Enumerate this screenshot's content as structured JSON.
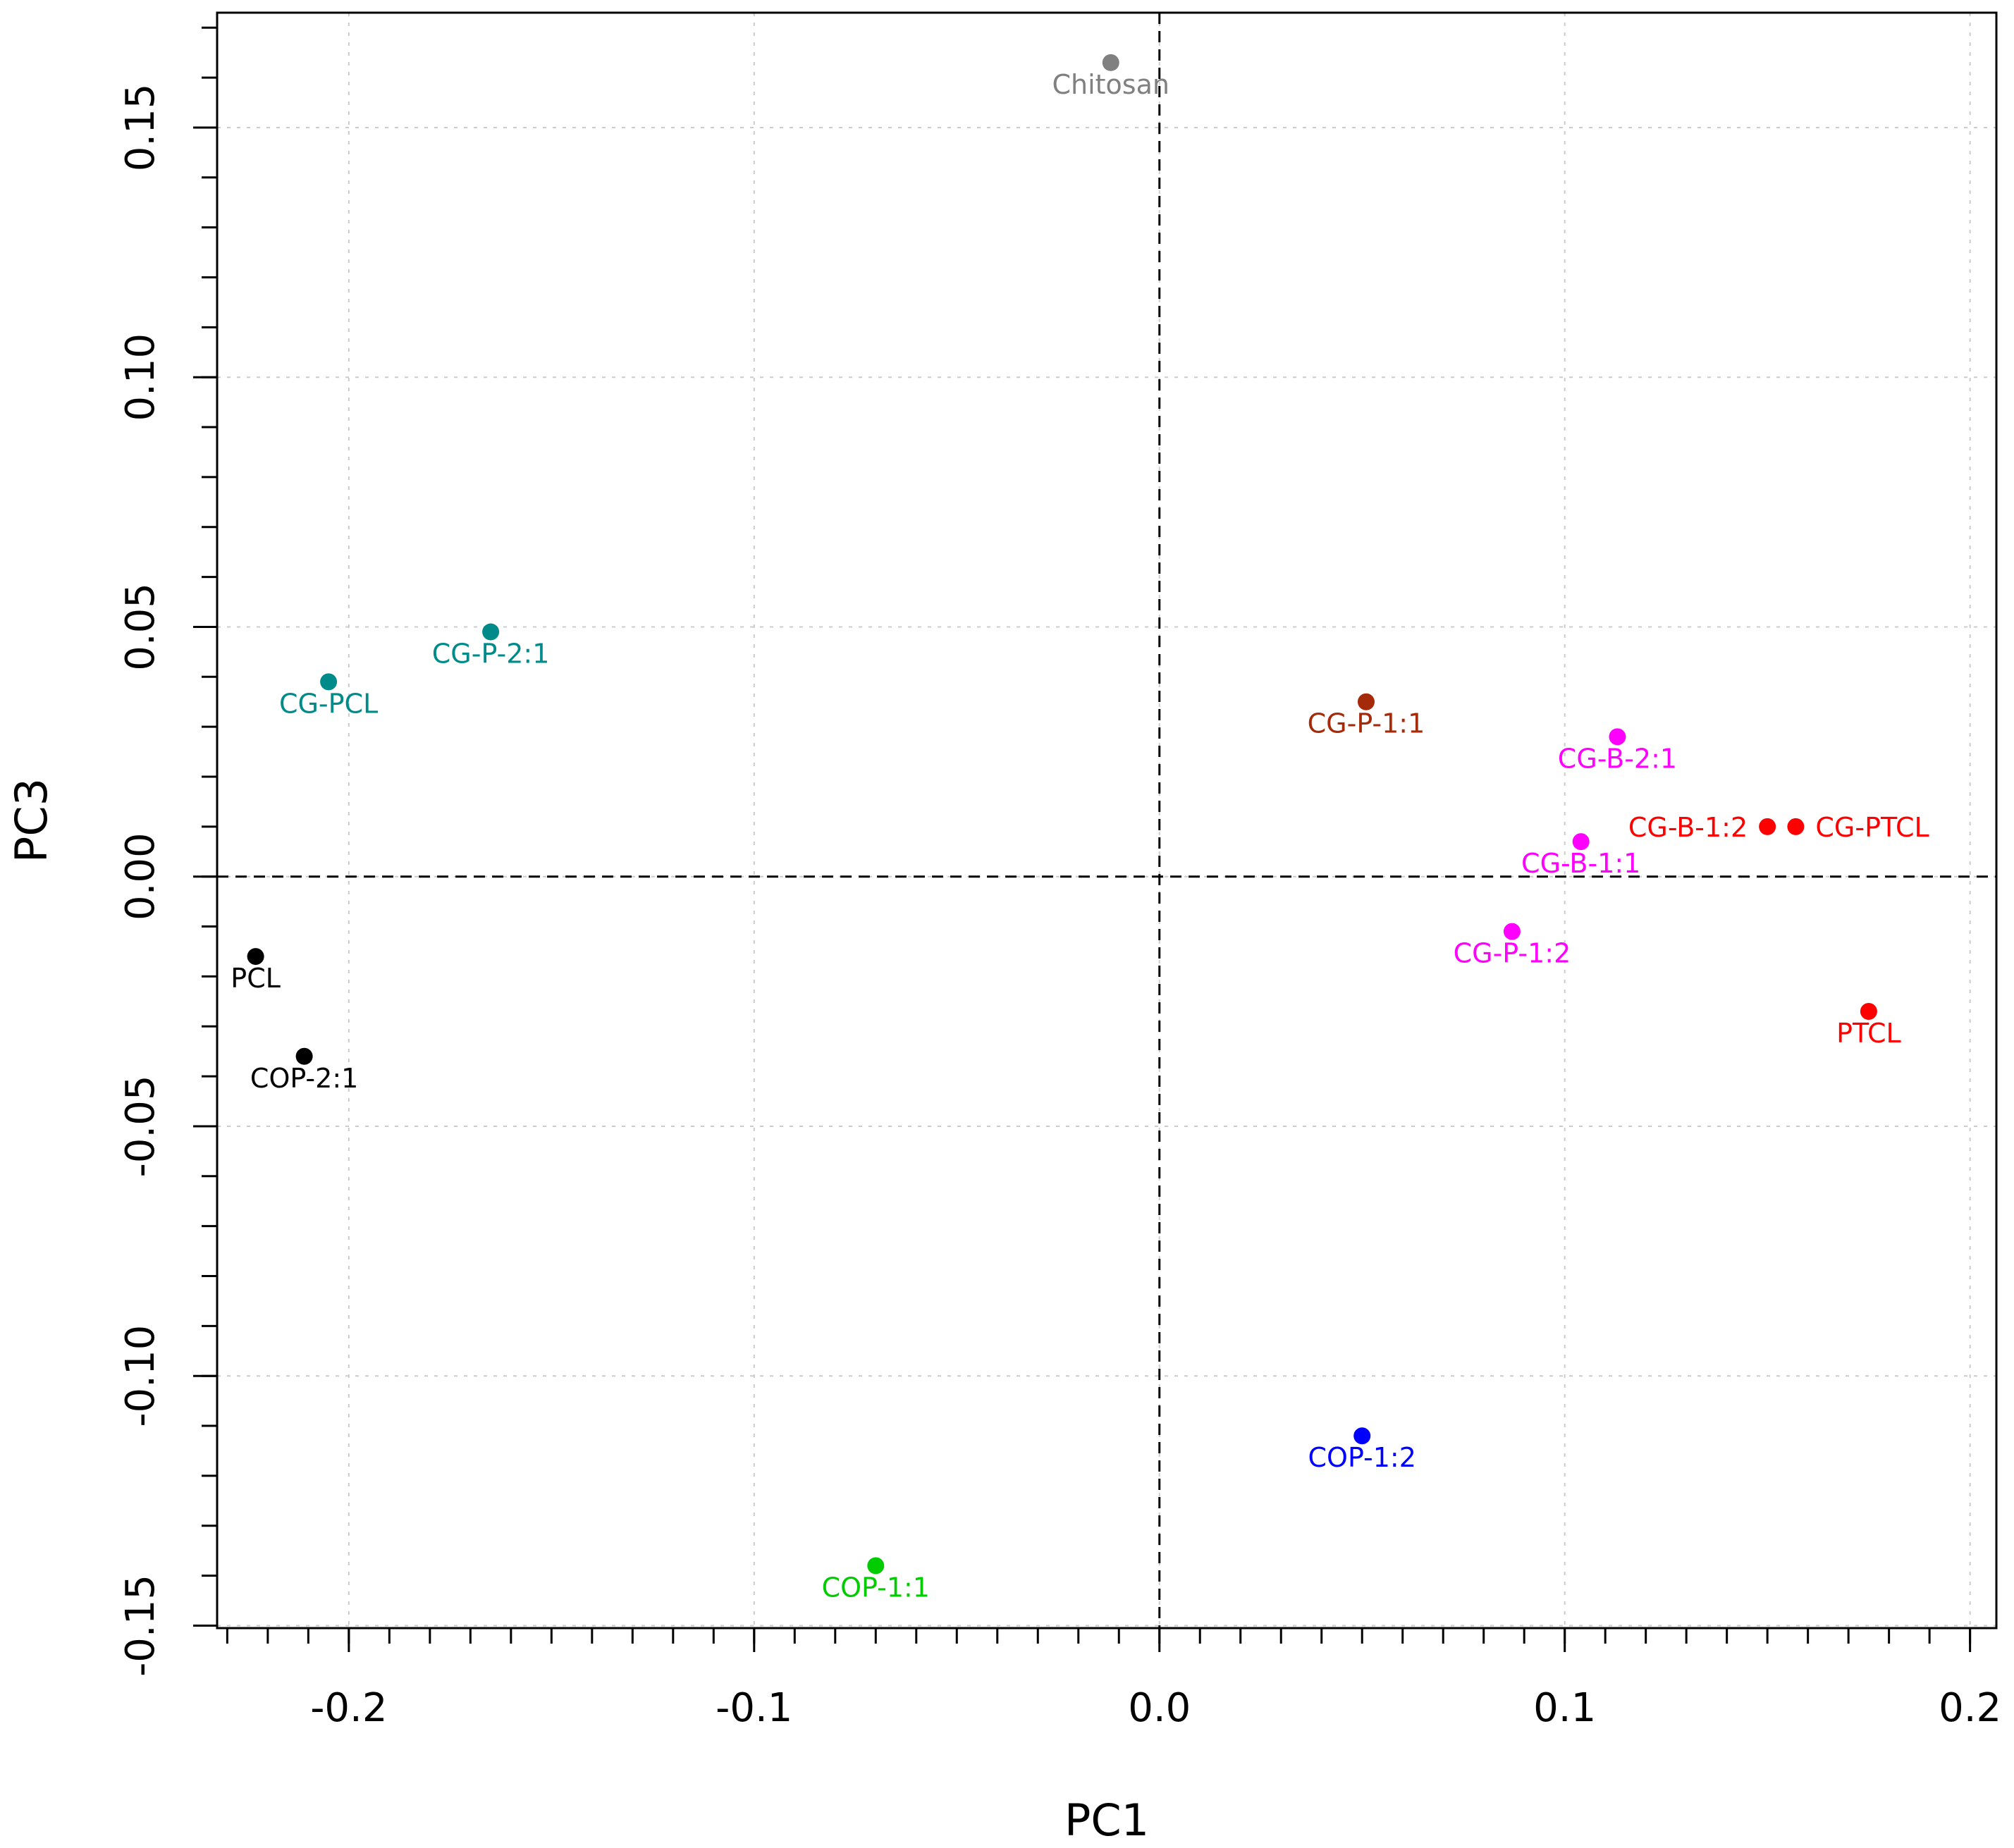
{
  "chart_data": {
    "type": "scatter",
    "xlabel": "PC1",
    "ylabel": "PC3",
    "xlim": [
      -0.2325,
      0.2065
    ],
    "ylim": [
      -0.1505,
      0.173
    ],
    "x_ticks": [
      -0.2,
      -0.1,
      0.0,
      0.1,
      0.2
    ],
    "x_tick_labels": [
      "-0.2",
      "-0.1",
      "0.0",
      "0.1",
      "0.2"
    ],
    "x_minor_step": 0.01,
    "y_ticks": [
      -0.15,
      -0.1,
      -0.05,
      0.0,
      0.05,
      0.1,
      0.15
    ],
    "y_tick_labels": [
      "-0.15",
      "-0.10",
      "-0.05",
      "0.00",
      "0.05",
      "0.10",
      "0.15"
    ],
    "y_minor_step": 0.01,
    "grid": true,
    "reference_lines": {
      "x": 0,
      "y": 0
    },
    "points": [
      {
        "label": "Chitosan",
        "x": -0.012,
        "y": 0.163,
        "color": "#808080",
        "label_pos": "below"
      },
      {
        "label": "CG-P-2:1",
        "x": -0.165,
        "y": 0.049,
        "color": "#008B8B",
        "label_pos": "below"
      },
      {
        "label": "CG-PCL",
        "x": -0.205,
        "y": 0.039,
        "color": "#008B8B",
        "label_pos": "below"
      },
      {
        "label": "CG-P-1:1",
        "x": 0.051,
        "y": 0.035,
        "color": "#A52A0A",
        "label_pos": "below"
      },
      {
        "label": "CG-B-2:1",
        "x": 0.113,
        "y": 0.028,
        "color": "#FF00FF",
        "label_pos": "below"
      },
      {
        "label": "CG-B-1:2",
        "x": 0.15,
        "y": 0.01,
        "color": "#FF0000",
        "label_pos": "left"
      },
      {
        "label": "CG-PTCL",
        "x": 0.157,
        "y": 0.01,
        "color": "#FF0000",
        "label_pos": "right"
      },
      {
        "label": "CG-B-1:1",
        "x": 0.104,
        "y": 0.007,
        "color": "#FF00FF",
        "label_pos": "below"
      },
      {
        "label": "CG-P-1:2",
        "x": 0.087,
        "y": -0.011,
        "color": "#FF00FF",
        "label_pos": "below"
      },
      {
        "label": "PCL",
        "x": -0.223,
        "y": -0.016,
        "color": "#000000",
        "label_pos": "below"
      },
      {
        "label": "PTCL",
        "x": 0.175,
        "y": -0.027,
        "color": "#FF0000",
        "label_pos": "below"
      },
      {
        "label": "COP-2:1",
        "x": -0.211,
        "y": -0.036,
        "color": "#000000",
        "label_pos": "below"
      },
      {
        "label": "COP-1:2",
        "x": 0.05,
        "y": -0.112,
        "color": "#0000FF",
        "label_pos": "below"
      },
      {
        "label": "COP-1:1",
        "x": -0.07,
        "y": -0.138,
        "color": "#00CC00",
        "label_pos": "below"
      }
    ]
  }
}
